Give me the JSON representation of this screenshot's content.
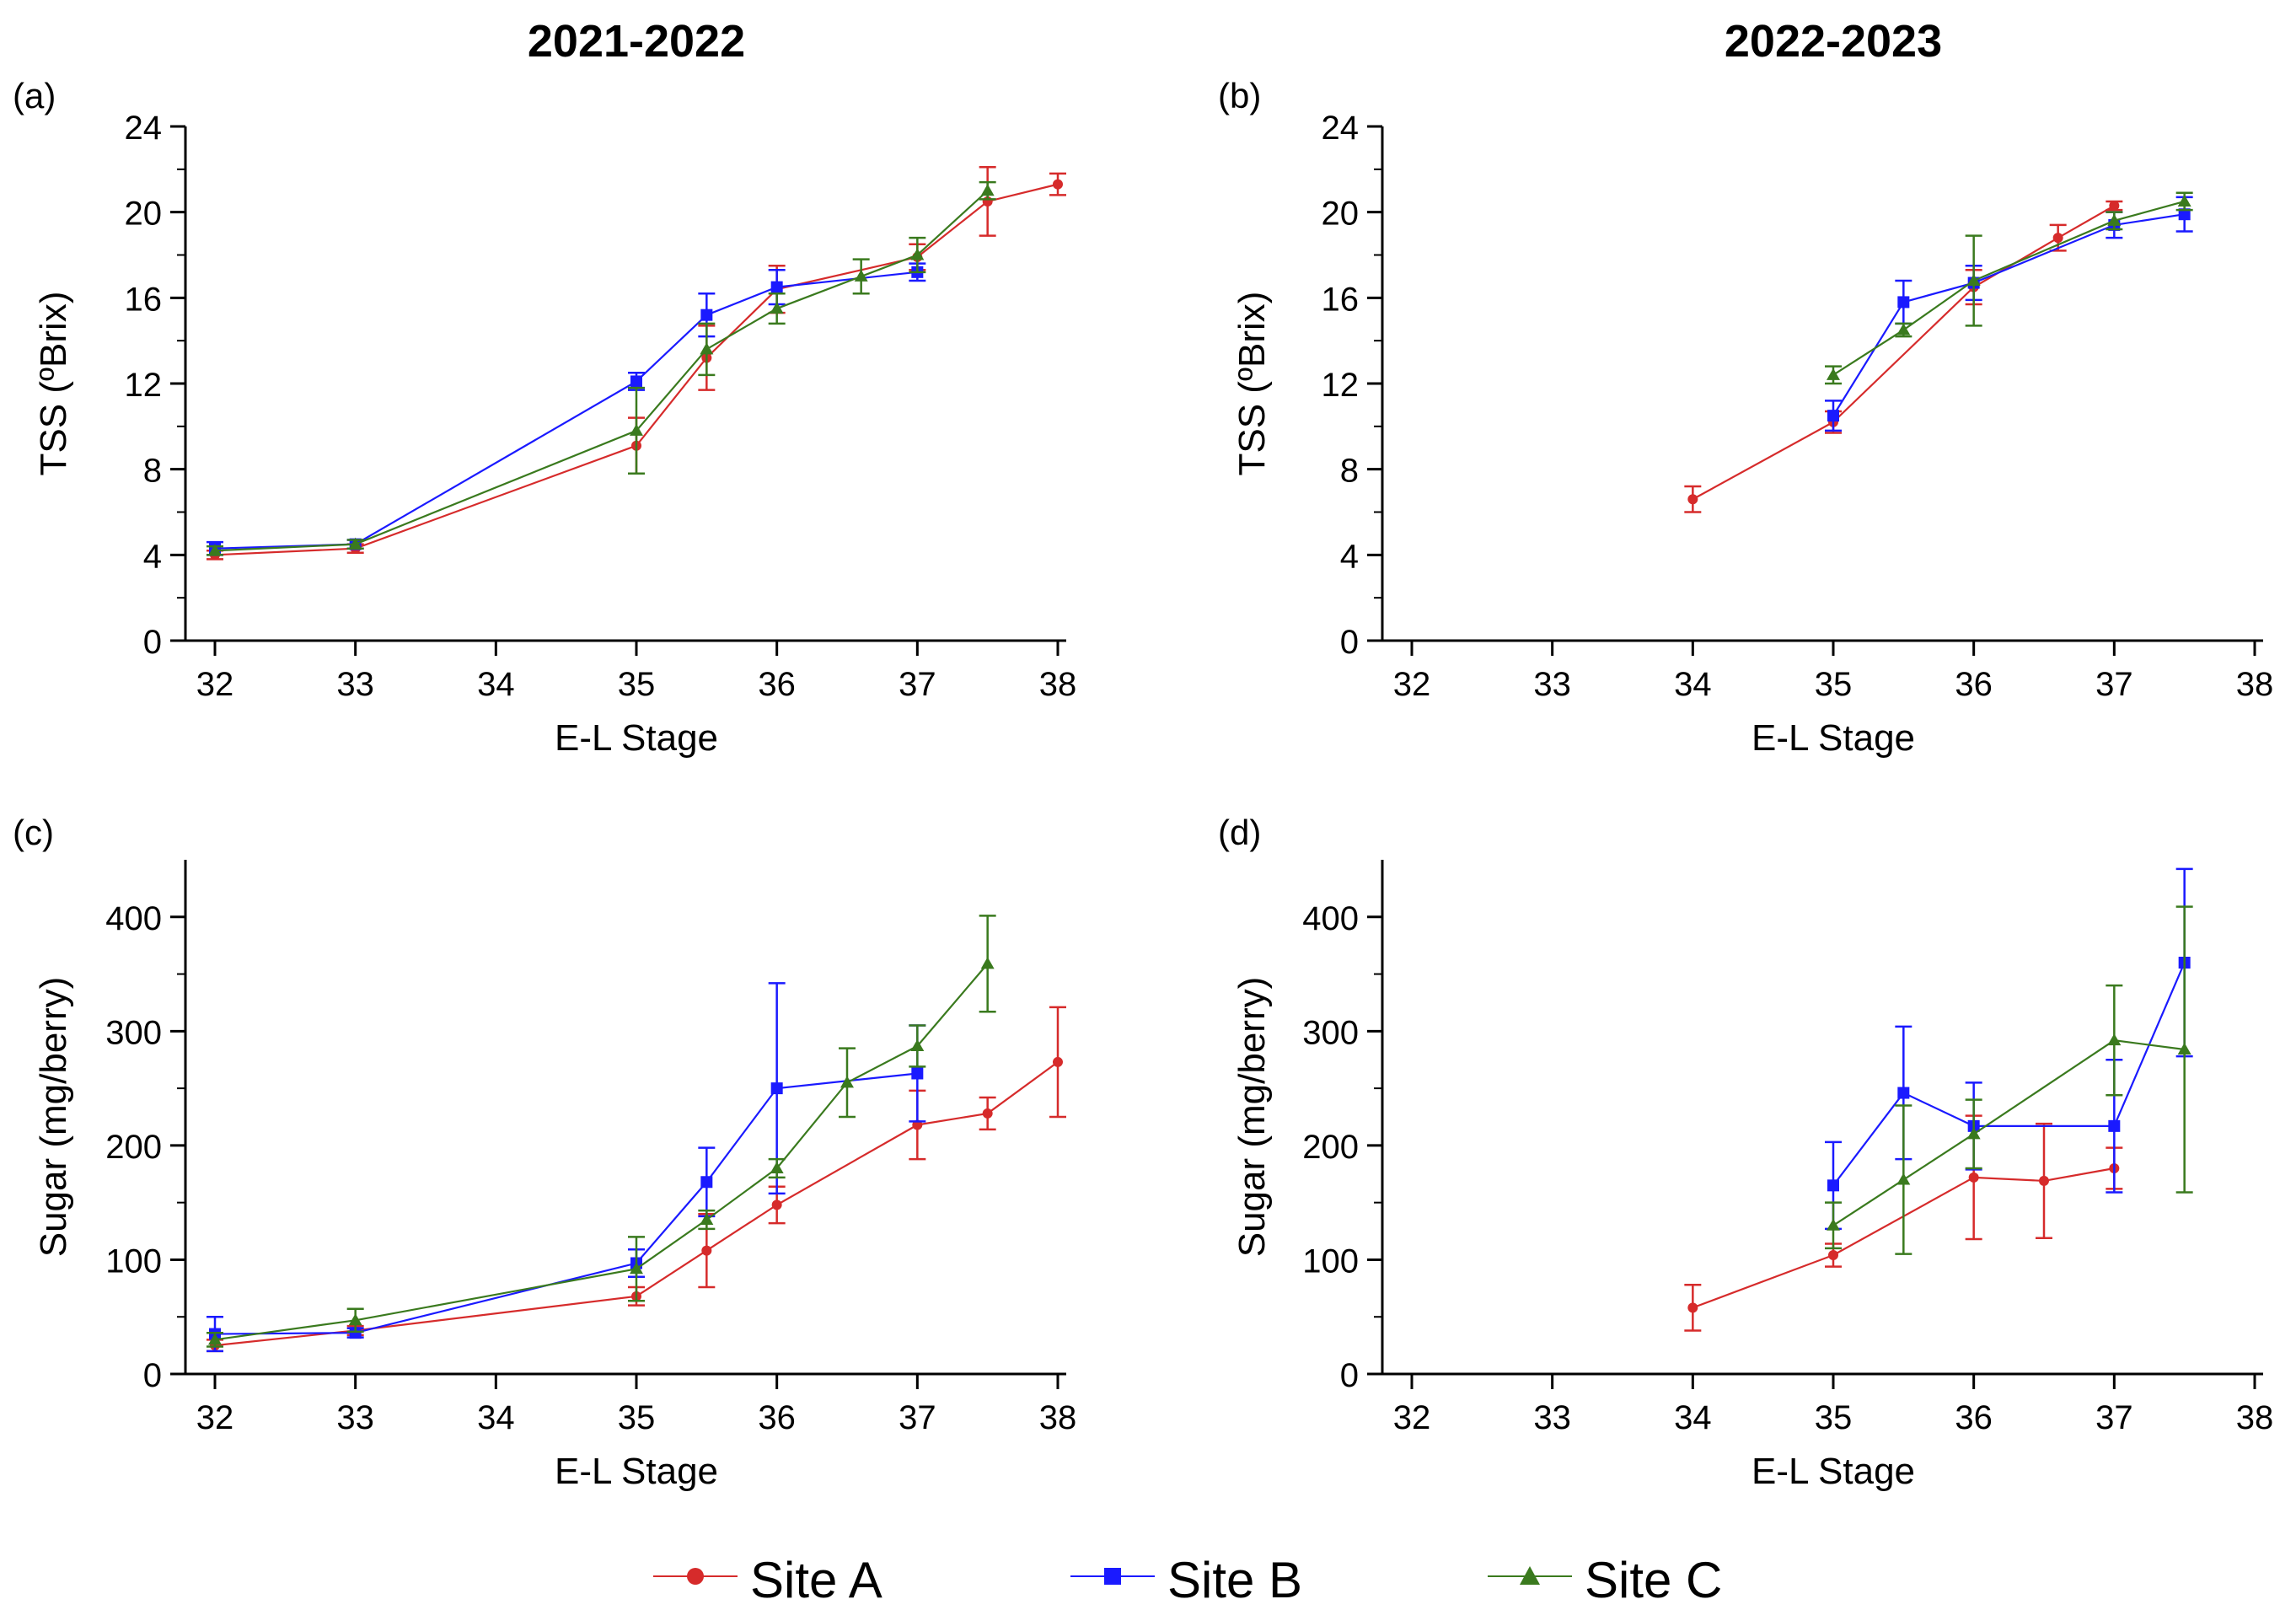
{
  "column_titles": [
    "2021-2022",
    "2022-2023"
  ],
  "legend": [
    {
      "name": "Site A",
      "color": "#d62b2b",
      "marker": "circle"
    },
    {
      "name": "Site B",
      "color": "#1a1aff",
      "marker": "square"
    },
    {
      "name": "Site C",
      "color": "#3a7a1e",
      "marker": "triangle"
    }
  ],
  "chart_data": [
    {
      "type": "line",
      "panel_label": "(a)",
      "xlabel": "E-L Stage",
      "ylabel": "TSS (ºBrix)",
      "xlim": [
        32,
        38
      ],
      "ylim": [
        0,
        24
      ],
      "xticks": [
        32,
        33,
        34,
        35,
        36,
        37,
        38
      ],
      "yticks": [
        0,
        4,
        8,
        12,
        16,
        20,
        24
      ],
      "series": [
        {
          "name": "Site A",
          "x": [
            32,
            33,
            35,
            35.5,
            36,
            37,
            37.5,
            38
          ],
          "y": [
            4.0,
            4.3,
            9.1,
            13.2,
            16.4,
            17.9,
            20.5,
            21.3
          ],
          "err": [
            0.2,
            0.2,
            1.3,
            1.5,
            1.1,
            0.6,
            1.6,
            0.5
          ]
        },
        {
          "name": "Site B",
          "x": [
            32,
            33,
            35,
            35.5,
            36,
            37
          ],
          "y": [
            4.3,
            4.5,
            12.1,
            15.2,
            16.5,
            17.2
          ],
          "err": [
            0.3,
            0.2,
            0.4,
            1.0,
            0.8,
            0.4
          ]
        },
        {
          "name": "Site C",
          "x": [
            32,
            33,
            35,
            35.5,
            36,
            36.6,
            37,
            37.5
          ],
          "y": [
            4.2,
            4.5,
            9.8,
            13.6,
            15.5,
            17.0,
            18.0,
            21.0
          ],
          "err": [
            0.2,
            0.2,
            2.0,
            1.2,
            0.7,
            0.8,
            0.8,
            0.4
          ]
        }
      ]
    },
    {
      "type": "line",
      "panel_label": "(b)",
      "xlabel": "E-L Stage",
      "ylabel": "TSS (ºBrix)",
      "xlim": [
        32,
        38
      ],
      "ylim": [
        0,
        24
      ],
      "xticks": [
        32,
        33,
        34,
        35,
        36,
        37,
        38
      ],
      "yticks": [
        0,
        4,
        8,
        12,
        16,
        20,
        24
      ],
      "series": [
        {
          "name": "Site A",
          "x": [
            34,
            35,
            36,
            36.6,
            37
          ],
          "y": [
            6.6,
            10.2,
            16.5,
            18.8,
            20.3
          ],
          "err": [
            0.6,
            0.5,
            0.8,
            0.6,
            0.2
          ]
        },
        {
          "name": "Site B",
          "x": [
            35,
            35.5,
            36,
            37,
            37.5
          ],
          "y": [
            10.5,
            15.8,
            16.7,
            19.4,
            19.9
          ],
          "err": [
            0.7,
            1.0,
            0.8,
            0.6,
            0.8
          ]
        },
        {
          "name": "Site C",
          "x": [
            35,
            35.5,
            36,
            37,
            37.5
          ],
          "y": [
            12.4,
            14.5,
            16.8,
            19.6,
            20.5
          ],
          "err": [
            0.4,
            0.3,
            2.1,
            0.4,
            0.4
          ]
        }
      ]
    },
    {
      "type": "line",
      "panel_label": "(c)",
      "xlabel": "E-L Stage",
      "ylabel": "Sugar (mg/berry)",
      "xlim": [
        32,
        38
      ],
      "ylim": [
        0,
        450
      ],
      "xticks": [
        32,
        33,
        34,
        35,
        36,
        37,
        38
      ],
      "yticks": [
        0,
        100,
        200,
        300,
        400
      ],
      "series": [
        {
          "name": "Site A",
          "x": [
            32,
            33,
            35,
            35.5,
            36,
            37,
            37.5,
            38
          ],
          "y": [
            25,
            38,
            68,
            108,
            148,
            218,
            228,
            273
          ],
          "err": [
            5,
            4,
            8,
            32,
            16,
            30,
            14,
            48
          ]
        },
        {
          "name": "Site B",
          "x": [
            32,
            33,
            35,
            35.5,
            36,
            37
          ],
          "y": [
            35,
            36,
            97,
            168,
            250,
            263
          ],
          "err": [
            15,
            4,
            12,
            30,
            92,
            42
          ]
        },
        {
          "name": "Site C",
          "x": [
            32,
            33,
            35,
            35.5,
            36,
            36.5,
            37,
            37.5
          ],
          "y": [
            30,
            47,
            92,
            135,
            180,
            255,
            287,
            359
          ],
          "err": [
            6,
            10,
            28,
            8,
            8,
            30,
            18,
            42
          ]
        }
      ]
    },
    {
      "type": "line",
      "panel_label": "(d)",
      "xlabel": "E-L Stage",
      "ylabel": "Sugar (mg/berry)",
      "xlim": [
        32,
        38
      ],
      "ylim": [
        0,
        450
      ],
      "xticks": [
        32,
        33,
        34,
        35,
        36,
        37,
        38
      ],
      "yticks": [
        0,
        100,
        200,
        300,
        400
      ],
      "series": [
        {
          "name": "Site A",
          "x": [
            34,
            35,
            36,
            36.5,
            37
          ],
          "y": [
            58,
            104,
            172,
            169,
            180
          ],
          "err": [
            20,
            10,
            54,
            50,
            18
          ]
        },
        {
          "name": "Site B",
          "x": [
            35,
            35.5,
            36,
            37,
            37.5
          ],
          "y": [
            165,
            246,
            217,
            217,
            360
          ],
          "err": [
            38,
            58,
            38,
            58,
            82
          ]
        },
        {
          "name": "Site C",
          "x": [
            35,
            35.5,
            36,
            37,
            37.5
          ],
          "y": [
            130,
            170,
            210,
            292,
            284
          ],
          "err": [
            20,
            65,
            30,
            48,
            125
          ]
        }
      ]
    }
  ]
}
